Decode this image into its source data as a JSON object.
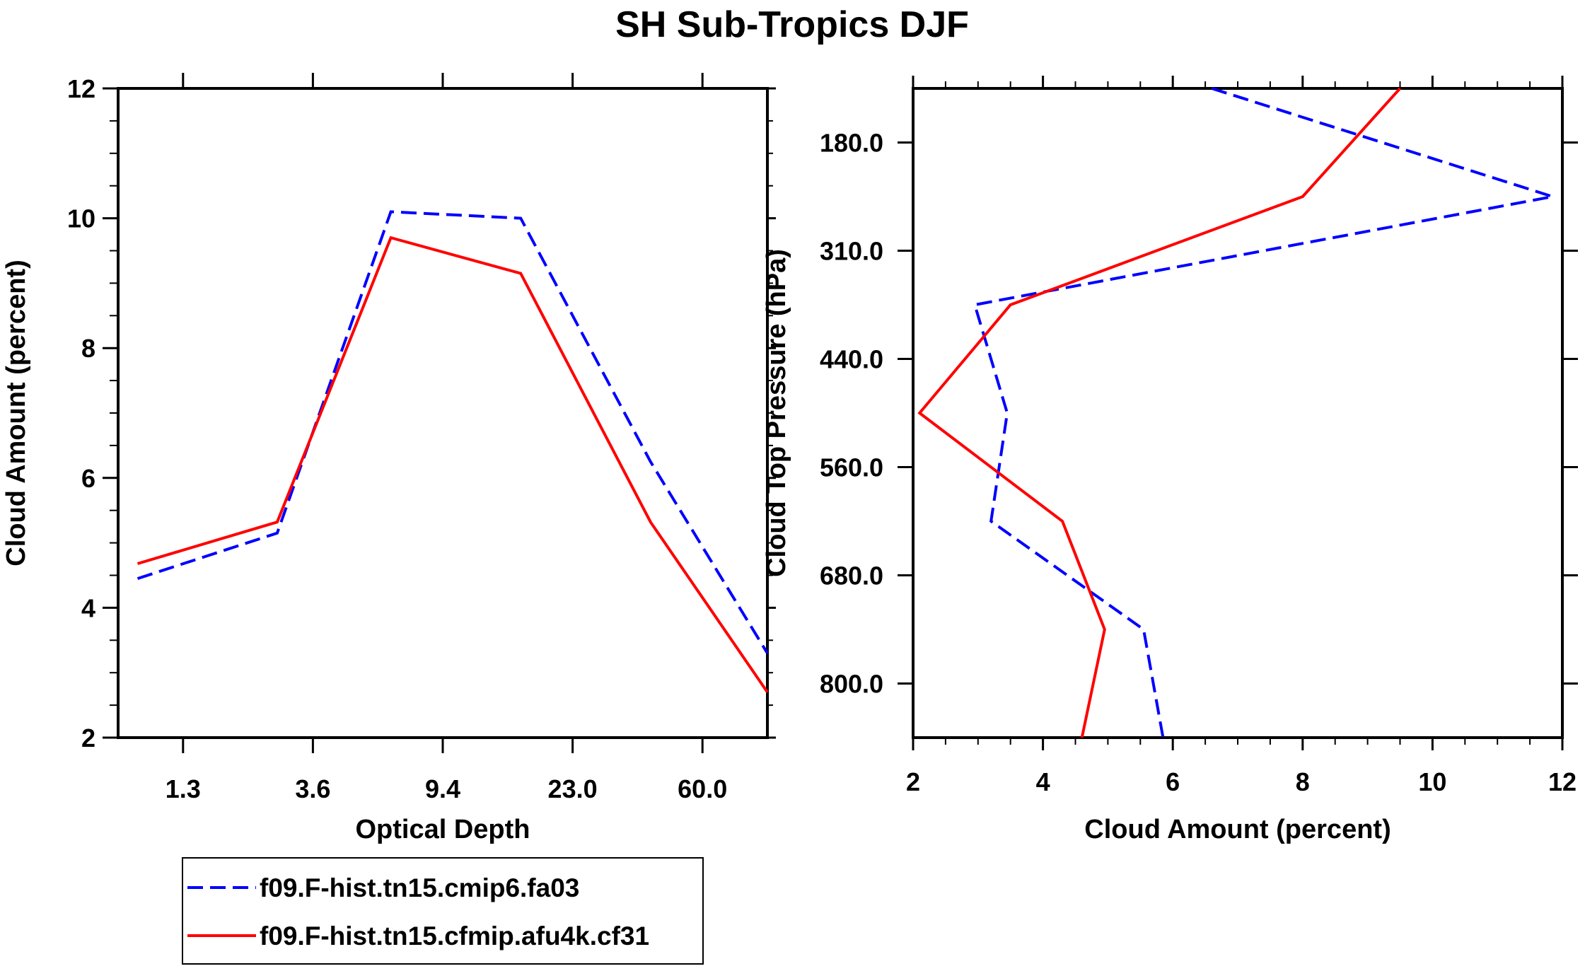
{
  "title": "SH Sub-Tropics DJF",
  "series_names": [
    "f09.F-hist.tn15.cmip6.fa03",
    "f09.F-hist.tn15.cfmip.afu4k.cf31"
  ],
  "colors": {
    "series_1": "#0000ff",
    "series_2": "#ff0000",
    "axis": "#000000",
    "background": "#ffffff"
  },
  "chart_data": [
    {
      "type": "line",
      "xlabel": "Optical Depth",
      "ylabel": "Cloud Amount (percent)",
      "x_tick_labels": [
        "1.3",
        "3.6",
        "9.4",
        "23.0",
        "60.0"
      ],
      "y_tick_labels": [
        "2",
        "4",
        "6",
        "8",
        "10",
        "12"
      ],
      "ylim": [
        2,
        12
      ],
      "x": [
        0.3,
        2.45,
        4.2,
        6.2,
        8.2,
        10.0
      ],
      "series": [
        {
          "name": "f09.F-hist.tn15.cmip6.fa03",
          "style": "dashed",
          "values": [
            4.45,
            5.15,
            10.1,
            10.0,
            6.25,
            3.3
          ]
        },
        {
          "name": "f09.F-hist.tn15.cfmip.afu4k.cf31",
          "style": "solid",
          "values": [
            4.68,
            5.32,
            9.7,
            9.15,
            5.32,
            2.7
          ]
        }
      ]
    },
    {
      "type": "line",
      "xlabel": "Cloud Amount (percent)",
      "ylabel": "Cloud Top Pressure (hPa)",
      "x_tick_labels": [
        "2",
        "4",
        "6",
        "8",
        "10",
        "12"
      ],
      "xlim": [
        2,
        12
      ],
      "y_tick_labels": [
        "180.0",
        "310.0",
        "440.0",
        "560.0",
        "680.0",
        "800.0"
      ],
      "y": [
        0.0,
        1.0,
        2.0,
        3.0,
        4.0,
        5.0,
        6.0
      ],
      "series": [
        {
          "name": "f09.F-hist.tn15.cmip6.fa03",
          "style": "dashed",
          "values": [
            6.6,
            11.85,
            2.95,
            3.45,
            3.2,
            5.55,
            5.85
          ]
        },
        {
          "name": "f09.F-hist.tn15.cfmip.afu4k.cf31",
          "style": "solid",
          "values": [
            9.5,
            8.0,
            3.5,
            2.1,
            4.3,
            4.95,
            4.6
          ]
        }
      ]
    }
  ]
}
